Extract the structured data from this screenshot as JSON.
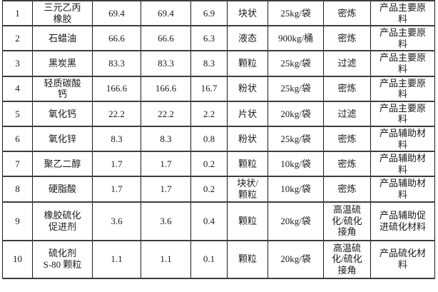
{
  "colors": {
    "background": "#ffffff",
    "text": "#1a1a1a",
    "border": "#3d3d3d"
  },
  "table": {
    "column_names": [
      "row-number",
      "material-name",
      "amount-1",
      "amount-2",
      "amount-3",
      "physical-form",
      "packaging",
      "process",
      "category"
    ],
    "rows": [
      [
        "1",
        "三元乙丙\n橡胶",
        "69.4",
        "69.4",
        "6.9",
        "块状",
        "25kg/袋",
        "密炼",
        "产品主要原\n料"
      ],
      [
        "2",
        "石蜡油",
        "66.6",
        "66.6",
        "6.3",
        "液态",
        "900kg/桶",
        "密炼",
        "产品主要原\n料"
      ],
      [
        "3",
        "黑炭黑",
        "83.3",
        "83.3",
        "8.3",
        "颗粒",
        "25kg/袋",
        "过滤",
        "产品主要原\n料"
      ],
      [
        "4",
        "轻质碳酸\n钙",
        "166.6",
        "166.6",
        "16.7",
        "粉状",
        "25kg/袋",
        "密炼",
        "产品主要原\n料"
      ],
      [
        "5",
        "氧化钙",
        "22.2",
        "22.2",
        "2.2",
        "片状",
        "20kg/袋",
        "过滤",
        "产品主要原\n料"
      ],
      [
        "6",
        "氧化锌",
        "8.3",
        "8.3",
        "0.8",
        "粉状",
        "25kg/袋",
        "密炼",
        "产品辅助材\n料"
      ],
      [
        "7",
        "聚乙二醇",
        "1.7",
        "1.7",
        "0.2",
        "颗粒",
        "10kg/袋",
        "密炼",
        "产品辅助材\n料"
      ],
      [
        "8",
        "硬脂酸",
        "1.7",
        "1.7",
        "0.2",
        "块状/\n颗粒",
        "10kg/袋",
        "密炼",
        "产品辅助材\n料"
      ],
      [
        "9",
        "橡胶硫化\n促进剂",
        "3.6",
        "3.6",
        "0.4",
        "颗粒",
        "20kg/袋",
        "高温硫\n化/硫化\n接角",
        "产品辅助促\n进硫化材料"
      ],
      [
        "10",
        "硫化剂\nS-80 颗粒",
        "1.1",
        "1.1",
        "0.1",
        "颗粒",
        "20kg/袋",
        "高温硫\n化/硫化\n接角",
        "产品硫化材\n料"
      ]
    ]
  }
}
